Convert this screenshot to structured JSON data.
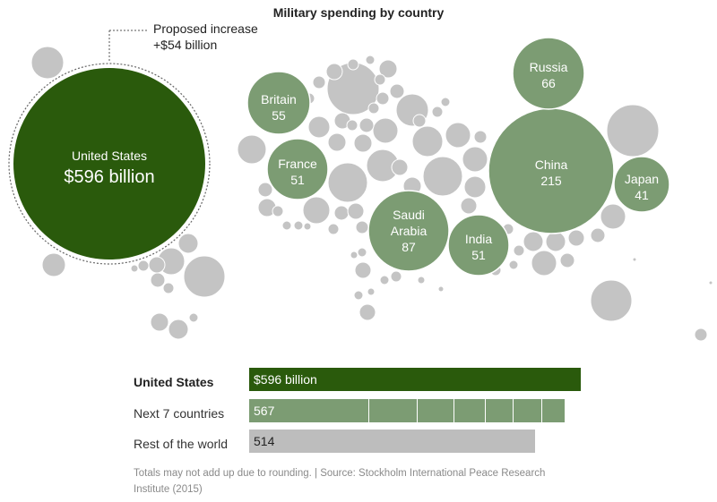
{
  "title": "Military spending by country",
  "annotation": {
    "label": "Proposed increase",
    "value": "+$54 billion"
  },
  "colors": {
    "us": "#2a5a0c",
    "top_countries": "#7c9c73",
    "other_countries": "#c4c4c4"
  },
  "chart_data": [
    {
      "type": "bubble",
      "title": "Military spending by country",
      "units": "billion US dollars",
      "labeled_bubbles": [
        {
          "name": "United States",
          "value_text": "$596 billion",
          "value": 596
        },
        {
          "name": "China",
          "value_text": "215",
          "value": 215
        },
        {
          "name": "Saudi Arabia",
          "value_text": "87",
          "value": 87
        },
        {
          "name": "Russia",
          "value_text": "66",
          "value": 66
        },
        {
          "name": "Britain",
          "value_text": "55",
          "value": 55
        },
        {
          "name": "India",
          "value_text": "51",
          "value": 51
        },
        {
          "name": "France",
          "value_text": "51",
          "value": 51
        },
        {
          "name": "Japan",
          "value_text": "41",
          "value": 41
        }
      ],
      "unlabeled_bubbles": "other countries (values not printed)"
    },
    {
      "type": "bar",
      "orientation": "horizontal",
      "categories": [
        "United States",
        "Next 7 countries",
        "Rest of the world"
      ],
      "values": [
        596,
        567,
        514
      ],
      "value_labels": [
        "$596 billion",
        "567",
        "514"
      ],
      "segments_next7": [
        215,
        87,
        66,
        55,
        51,
        51,
        41
      ]
    }
  ],
  "footnote": "Totals may not add up due to rounding. | Source: Stockholm International Peace Research Institute (2015)"
}
